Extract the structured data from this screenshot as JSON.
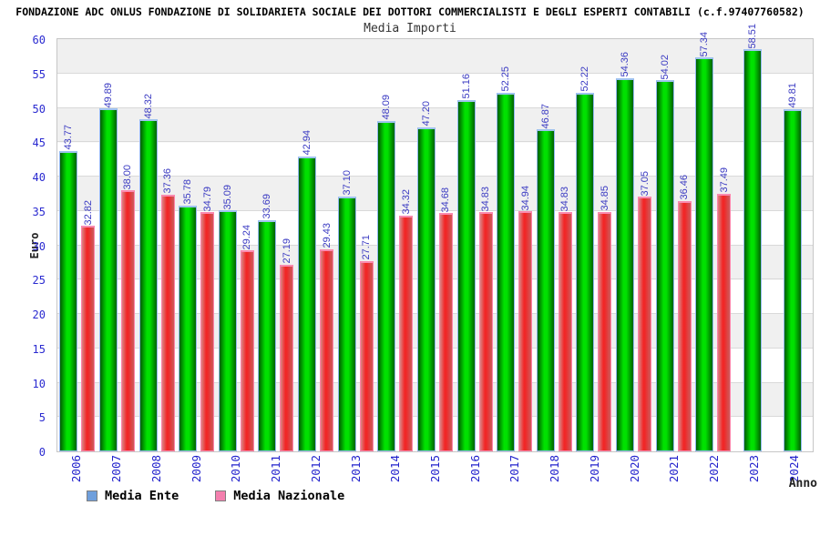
{
  "header": {
    "title": "FONDAZIONE ADC ONLUS FONDAZIONE DI SOLIDARIETA SOCIALE DEI DOTTORI COMMERCIALISTI E DEGLI ESPERTI CONTABILI (c.f.97407760582)",
    "subtitle": "Media Importi"
  },
  "chart_data": {
    "type": "bar",
    "title": "Media Importi",
    "xlabel": "Anno",
    "ylabel": "Euro",
    "ylim": [
      0,
      60
    ],
    "ytick_step": 5,
    "grid": "horizontal bands every 5 units, alternating white and light gray",
    "legend_position": "bottom-left",
    "categories": [
      "2006",
      "2007",
      "2008",
      "2009",
      "2010",
      "2011",
      "2012",
      "2013",
      "2014",
      "2015",
      "2016",
      "2017",
      "2018",
      "2019",
      "2020",
      "2021",
      "2022",
      "2023",
      "2024"
    ],
    "series": [
      {
        "name": "Media Ente",
        "values": [
          43.77,
          49.89,
          48.32,
          35.78,
          35.09,
          33.69,
          42.94,
          37.1,
          48.09,
          47.2,
          51.16,
          52.25,
          46.87,
          52.22,
          54.36,
          54.02,
          57.34,
          58.51,
          49.81
        ]
      },
      {
        "name": "Media Nazionale",
        "values": [
          32.82,
          38.0,
          37.36,
          34.79,
          29.24,
          27.19,
          29.43,
          27.71,
          34.32,
          34.68,
          34.83,
          34.94,
          34.83,
          34.85,
          37.05,
          36.46,
          37.49,
          null,
          null
        ]
      }
    ]
  },
  "colors": {
    "legend_ente": "#6f9fdc",
    "legend_nazionale": "#f47fae",
    "bar_ente_center": "#00e100",
    "bar_ente_edge": "#005c00",
    "bar_ente_cap": "#9fc3ef",
    "bar_nazionale_center": "#f22525",
    "bar_nazionale_edge": "#d98585",
    "bar_nazionale_cap": "#f98bb0",
    "tick_text": "#2a2ad0",
    "value_text": "#3a3ac2",
    "band_gray": "#f0f0f0",
    "gridline": "#d9d9d9"
  }
}
